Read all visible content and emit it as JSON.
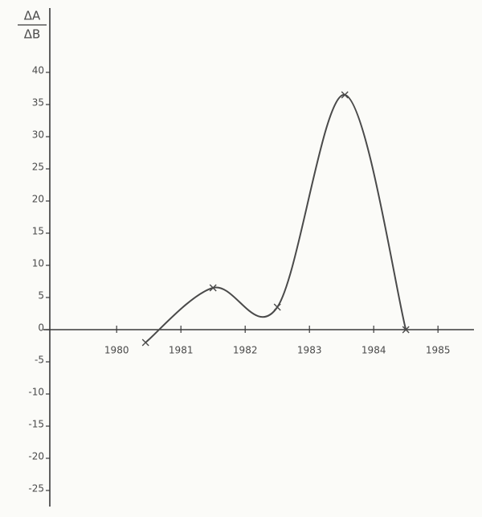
{
  "chart_data": {
    "type": "line",
    "y_label_top": "ΔA",
    "y_label_bottom": "ΔB",
    "x": [
      1980.45,
      1981.5,
      1982.5,
      1983.55,
      1984.5
    ],
    "series": [
      {
        "color": "#4a4a4a",
        "values": [
          -2,
          6.5,
          3.5,
          36.5,
          0
        ]
      }
    ],
    "xlim": [
      1978.96,
      1985.56
    ],
    "xticks": [
      1980,
      1981,
      1982,
      1983,
      1984,
      1985
    ],
    "ylim": [
      -27.5,
      50
    ],
    "yticks": [
      -25,
      -20,
      -15,
      -10,
      -5,
      0,
      5,
      10,
      15,
      20,
      25,
      30,
      35,
      40
    ],
    "grid": false,
    "smooth": true
  }
}
